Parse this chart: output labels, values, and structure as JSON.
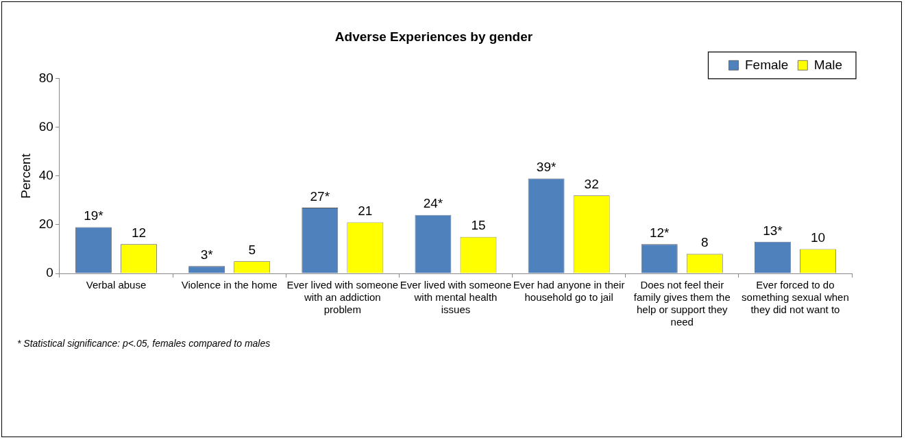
{
  "chart_data": {
    "type": "bar",
    "title": "Adverse Experiences by gender",
    "ylabel": "Percent",
    "categories": [
      "Verbal abuse",
      "Violence in the home",
      "Ever lived with someone with an addiction problem",
      "Ever lived with someone with mental health issues",
      "Ever had anyone in their household go to jail",
      "Does not feel their family gives them the help or support they need",
      "Ever forced to do something sexual when they did not want to"
    ],
    "series": [
      {
        "name": "Female",
        "color": "#4f81bd",
        "values": [
          19,
          3,
          27,
          24,
          39,
          12,
          13
        ],
        "value_labels": [
          "19*",
          "3*",
          "27*",
          "24*",
          "39*",
          "12*",
          "13*"
        ]
      },
      {
        "name": "Male",
        "color": "#ffff00",
        "values": [
          12,
          5,
          21,
          15,
          32,
          8,
          10
        ],
        "value_labels": [
          "12",
          "5",
          "21",
          "15",
          "32",
          "8",
          "10"
        ]
      }
    ],
    "ylim": [
      0,
      80
    ],
    "yticks": [
      0,
      20,
      40,
      60,
      80
    ],
    "grid": false,
    "legend": "top right",
    "annotations": [
      "* Statistical significance: p<.05, females compared to males"
    ]
  }
}
